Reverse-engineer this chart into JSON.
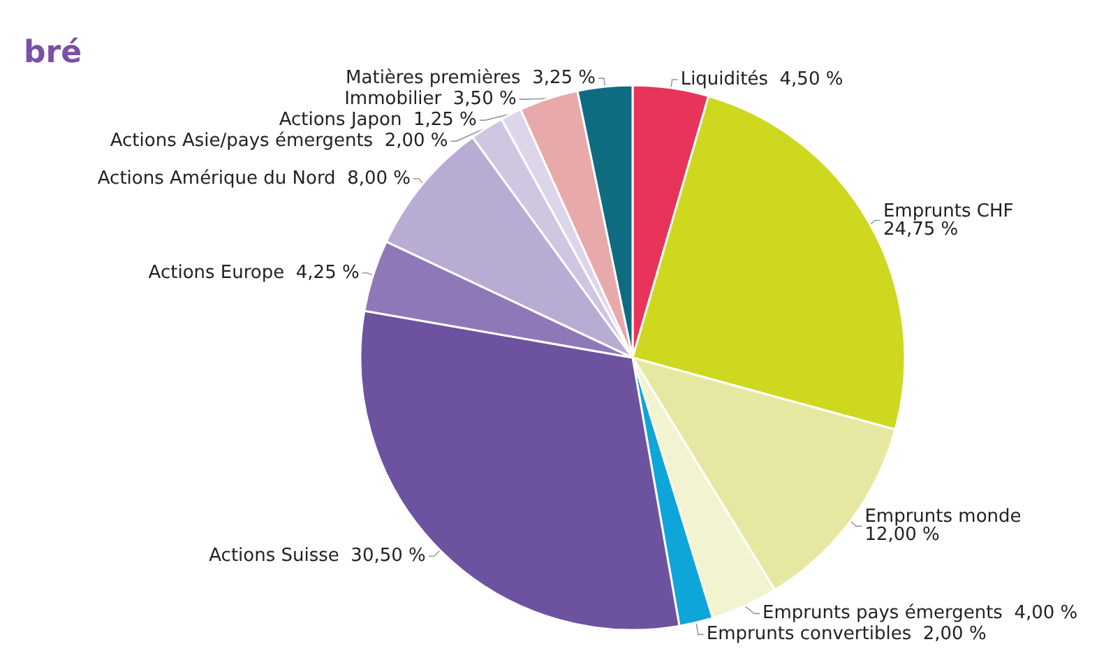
{
  "chart_data": {
    "type": "pie",
    "title": "bré",
    "categories": [
      "Liquidités",
      "Emprunts CHF",
      "Emprunts monde",
      "Emprunts pays émergents",
      "Emprunts convertibles",
      "Actions Suisse",
      "Actions Europe",
      "Actions Amérique du Nord",
      "Actions Asie/pays émergents",
      "Actions Japon",
      "Immobilier",
      "Matières premières"
    ],
    "values": [
      4.5,
      24.75,
      12,
      4,
      2,
      30.5,
      4.25,
      8,
      2,
      1.25,
      3.5,
      3.25
    ],
    "value_labels": [
      "4,50 %",
      "24,75 %",
      "12,00 %",
      "4,00 %",
      "2,00 %",
      "30,50 %",
      "4,25 %",
      "8,00 %",
      "2,00 %",
      "1,25 %",
      "3,50 %",
      "3,25 %"
    ],
    "colors": [
      "#e8345a",
      "#cdd81e",
      "#e6e8a2",
      "#f2f3d0",
      "#0ea5d8",
      "#6d539f",
      "#8f78b8",
      "#b8acd4",
      "#cfc6e2",
      "#ddd6ea",
      "#e8a9ab",
      "#0e6b80"
    ],
    "legend": false
  }
}
